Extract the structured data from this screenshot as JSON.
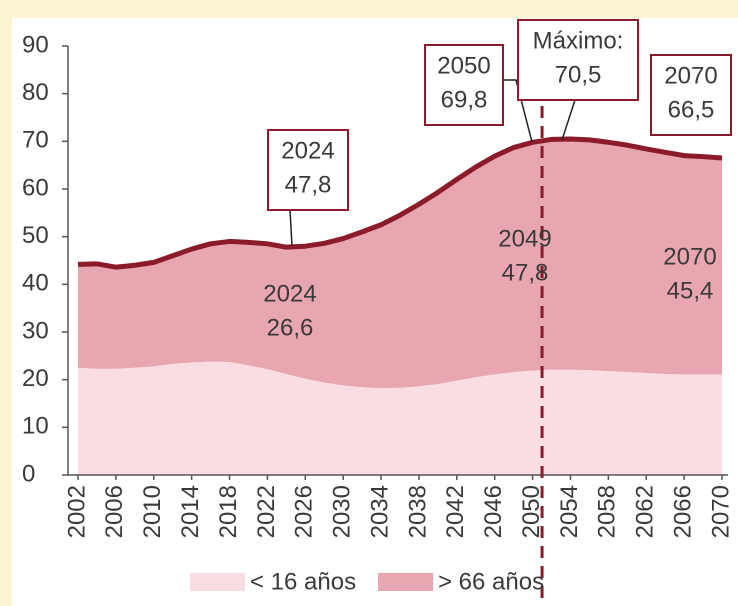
{
  "chart_data": {
    "type": "stacked-area",
    "x": [
      2002,
      2004,
      2006,
      2008,
      2010,
      2012,
      2014,
      2016,
      2018,
      2020,
      2022,
      2024,
      2026,
      2028,
      2030,
      2032,
      2034,
      2036,
      2038,
      2040,
      2042,
      2044,
      2046,
      2048,
      2050,
      2052,
      2054,
      2056,
      2058,
      2060,
      2062,
      2064,
      2066,
      2068,
      2070
    ],
    "series": [
      {
        "name": "< 16 años",
        "color": "#f9dde2",
        "values": [
          22.5,
          22.3,
          22.3,
          22.5,
          22.8,
          23.3,
          23.6,
          23.8,
          23.7,
          23.0,
          22.2,
          21.2,
          20.2,
          19.4,
          18.8,
          18.4,
          18.2,
          18.3,
          18.6,
          19.1,
          19.8,
          20.5,
          21.1,
          21.6,
          21.9,
          22.1,
          22.1,
          22.0,
          21.8,
          21.6,
          21.4,
          21.2,
          21.1,
          21.1,
          21.1
        ]
      },
      {
        "name": "> 66 años",
        "color": "#e8a6b0",
        "values": [
          21.7,
          22.0,
          21.3,
          21.5,
          21.8,
          22.7,
          23.8,
          24.7,
          25.3,
          25.8,
          26.3,
          26.6,
          27.8,
          29.2,
          30.8,
          32.6,
          34.3,
          36.2,
          38.2,
          40.2,
          42.2,
          44.1,
          45.8,
          47.1,
          47.9,
          48.3,
          48.4,
          48.3,
          48.0,
          47.6,
          47.0,
          46.5,
          45.9,
          45.7,
          45.4
        ]
      }
    ],
    "line_color": "#8b1a2b",
    "xlim": [
      2002,
      2070
    ],
    "xticks": [
      2002,
      2006,
      2010,
      2014,
      2018,
      2022,
      2026,
      2030,
      2034,
      2038,
      2042,
      2046,
      2050,
      2054,
      2058,
      2062,
      2066,
      2070
    ],
    "ylim": [
      0,
      90
    ],
    "yticks": [
      0,
      10,
      20,
      30,
      40,
      50,
      60,
      70,
      80,
      90
    ],
    "vline": 2051,
    "annotations": [
      {
        "lines": [
          "2024",
          "47,8"
        ]
      },
      {
        "lines": [
          "2050",
          "69,8"
        ]
      },
      {
        "lines": [
          "Máximo:",
          "70,5"
        ]
      },
      {
        "lines": [
          "2070",
          "66,5"
        ]
      },
      {
        "lines": [
          "2024",
          "26,6"
        ]
      },
      {
        "lines": [
          "2049",
          "47,8"
        ]
      },
      {
        "lines": [
          "2070",
          "45,4"
        ]
      }
    ]
  }
}
